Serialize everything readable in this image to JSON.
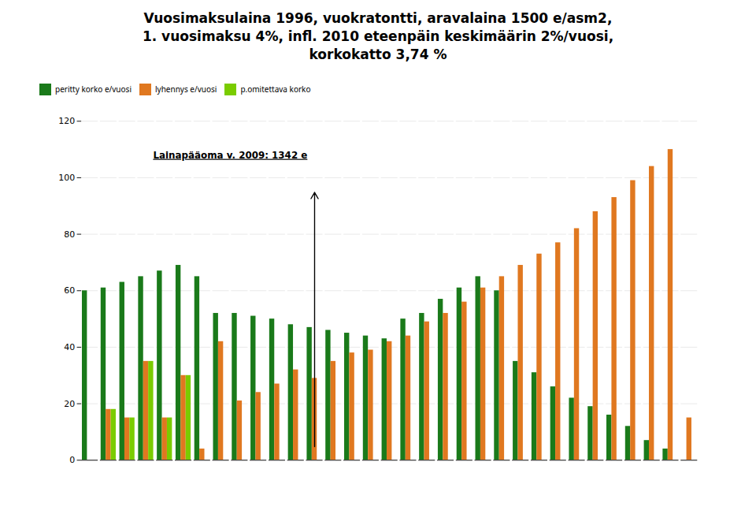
{
  "chart_data": {
    "type": "bar",
    "title": "Vuosimaksulaina 1996, vuokratontti, aravalaina 1500 e/asm2,\n1. vuosimaksu 4%, infl. 2010 eteenpäin keskimäärin 2%/vuosi,\nkorkokatto 3,74 %",
    "categories": [
      null,
      null,
      null,
      null,
      null,
      null,
      null,
      null,
      null,
      null,
      null,
      null,
      null,
      null,
      null,
      null,
      null,
      null,
      null,
      null,
      null,
      null,
      null,
      null,
      null,
      null,
      null,
      null,
      null,
      null,
      null,
      null,
      null
    ],
    "series": [
      {
        "name": "peritty korko e/vuosi",
        "color": "#1a7a1a",
        "values": [
          60,
          61,
          63,
          65,
          67,
          69,
          65,
          52,
          52,
          51,
          50,
          48,
          47,
          46,
          45,
          44,
          43,
          50,
          52,
          57,
          61,
          65,
          60,
          35,
          31,
          26,
          22,
          19,
          16,
          12,
          7,
          4,
          0
        ]
      },
      {
        "name": "lyhennys e/vuosi",
        "color": "#e07820",
        "values": [
          0,
          18,
          15,
          35,
          15,
          30,
          4,
          42,
          21,
          24,
          27,
          32,
          29,
          35,
          38,
          39,
          42,
          44,
          49,
          52,
          56,
          61,
          65,
          69,
          73,
          77,
          82,
          88,
          93,
          99,
          104,
          110,
          15
        ]
      },
      {
        "name": "p.omitettava korko",
        "color": "#7acc00",
        "values": [
          0,
          18,
          15,
          35,
          15,
          30,
          0,
          0,
          0,
          0,
          0,
          0,
          0,
          0,
          0,
          0,
          0,
          0,
          0,
          0,
          0,
          0,
          0,
          0,
          0,
          0,
          0,
          0,
          0,
          0,
          0,
          0,
          0
        ]
      }
    ],
    "annotations": [
      {
        "text": "Lainapääoma v. 2009: 1342 e",
        "x": 12
      }
    ],
    "ylim": [
      0,
      120
    ],
    "yticks": [
      0,
      20,
      40,
      60,
      80,
      100,
      120
    ],
    "grid": true,
    "legend": "upper left",
    "tick_labels": "y"
  }
}
